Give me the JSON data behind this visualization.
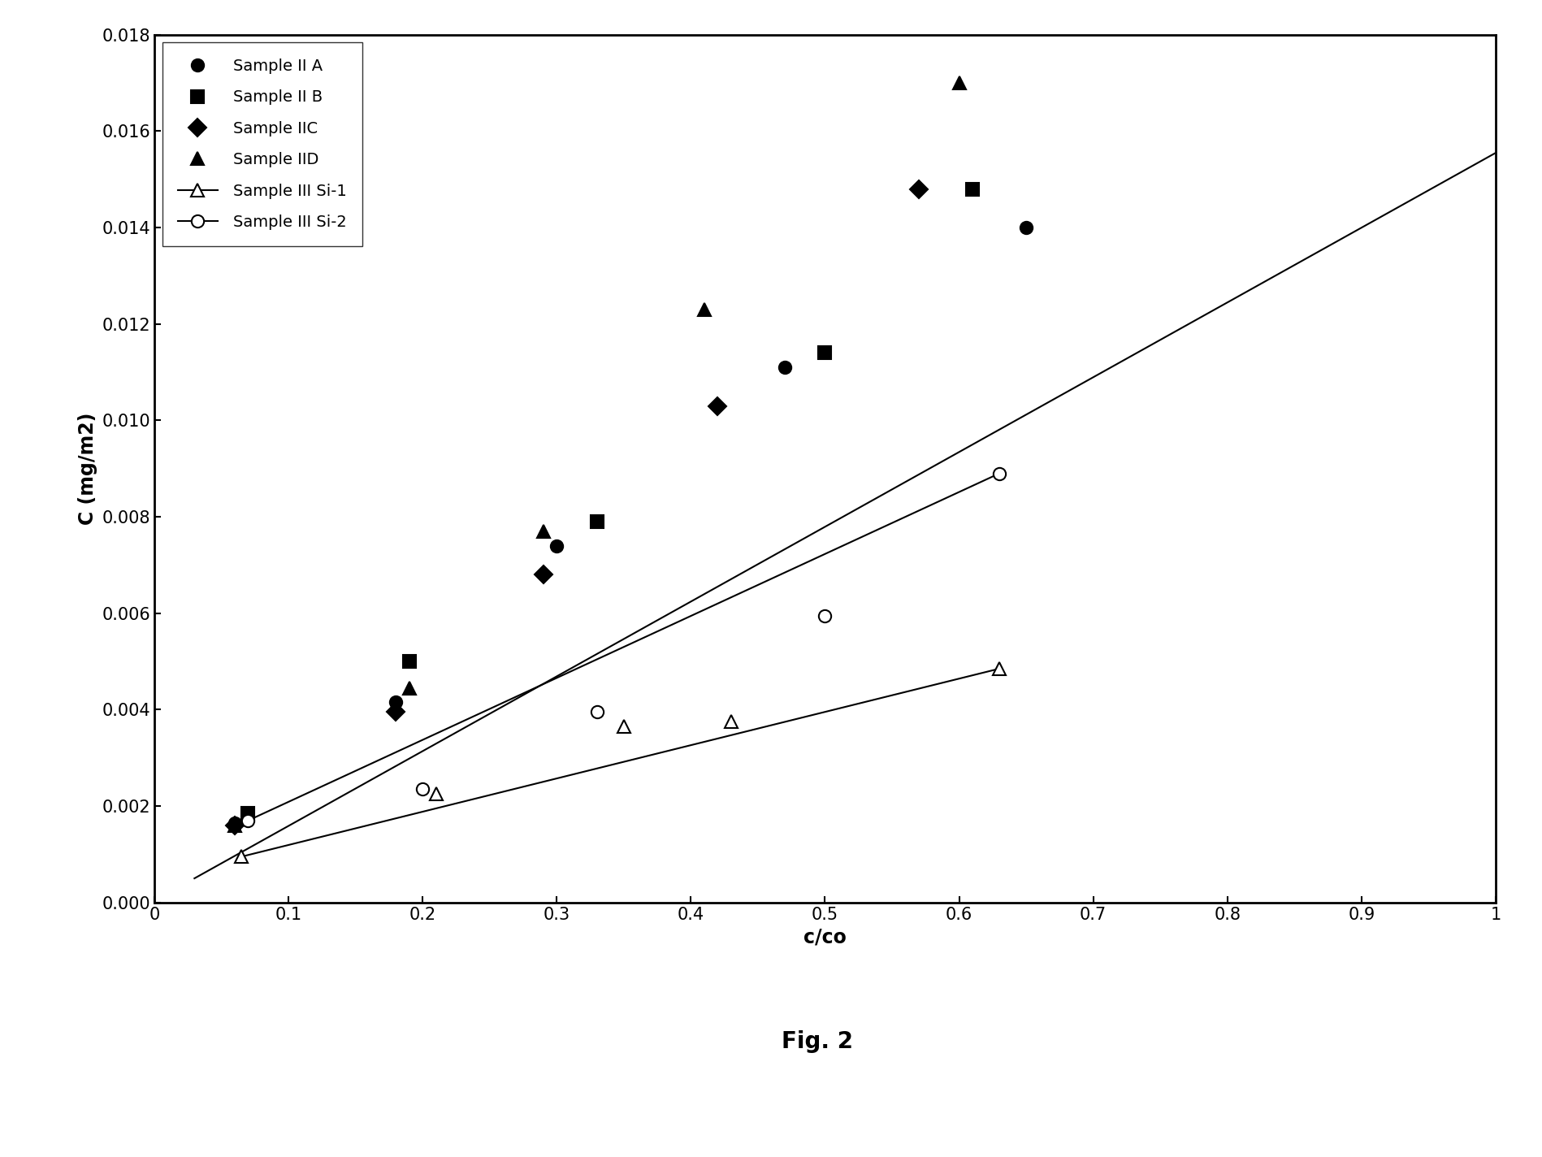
{
  "title": "Fig. 2",
  "xlabel": "c/co",
  "ylabel": "C (mg/m2)",
  "xlim": [
    0,
    1.0
  ],
  "ylim": [
    0,
    0.018
  ],
  "xticks": [
    0,
    0.1,
    0.2,
    0.3,
    0.4,
    0.5,
    0.6,
    0.7,
    0.8,
    0.9,
    1
  ],
  "yticks": [
    0.0,
    0.002,
    0.004,
    0.006,
    0.008,
    0.01,
    0.012,
    0.014,
    0.016,
    0.018
  ],
  "series": [
    {
      "label": "Sample II A",
      "marker": "o",
      "filled": true,
      "x": [
        0.06,
        0.18,
        0.3,
        0.47,
        0.65
      ],
      "y": [
        0.00165,
        0.00415,
        0.0074,
        0.0111,
        0.014
      ],
      "fit_line": true,
      "fit_x": [
        0.03,
        1.0
      ],
      "fit_y": [
        0.0005,
        0.01555
      ]
    },
    {
      "label": "Sample II B",
      "marker": "s",
      "filled": true,
      "x": [
        0.07,
        0.19,
        0.33,
        0.5,
        0.61
      ],
      "y": [
        0.00185,
        0.005,
        0.0079,
        0.0114,
        0.0148
      ],
      "fit_line": false
    },
    {
      "label": "Sample IIC",
      "marker": "D",
      "filled": true,
      "x": [
        0.06,
        0.18,
        0.29,
        0.42,
        0.57
      ],
      "y": [
        0.0016,
        0.00395,
        0.0068,
        0.0103,
        0.0148
      ],
      "fit_line": false
    },
    {
      "label": "Sample IID",
      "marker": "^",
      "filled": true,
      "x": [
        0.06,
        0.19,
        0.29,
        0.41,
        0.6
      ],
      "y": [
        0.0016,
        0.00445,
        0.0077,
        0.0123,
        0.017
      ],
      "fit_line": false
    },
    {
      "label": "Sample III Si-1",
      "marker": "^",
      "filled": false,
      "x": [
        0.065,
        0.21,
        0.35,
        0.43,
        0.63
      ],
      "y": [
        0.00095,
        0.00225,
        0.00365,
        0.00375,
        0.00485
      ],
      "fit_line": true,
      "fit_x": [
        0.065,
        0.63
      ],
      "fit_y": [
        0.00095,
        0.00485
      ]
    },
    {
      "label": "Sample III Si-2",
      "marker": "o",
      "filled": false,
      "x": [
        0.07,
        0.2,
        0.33,
        0.5,
        0.63
      ],
      "y": [
        0.0017,
        0.00235,
        0.00395,
        0.00595,
        0.0089
      ],
      "fit_line": true,
      "fit_x": [
        0.07,
        0.63
      ],
      "fit_y": [
        0.0017,
        0.0089
      ]
    }
  ],
  "background_color": "#ffffff",
  "marker_size": 11,
  "linewidth": 1.5,
  "legend_fontsize": 14,
  "axis_label_fontsize": 17,
  "tick_fontsize": 15,
  "fig_label_fontsize": 20,
  "legend_labelspacing": 1.0,
  "legend_handlelength": 2.5
}
